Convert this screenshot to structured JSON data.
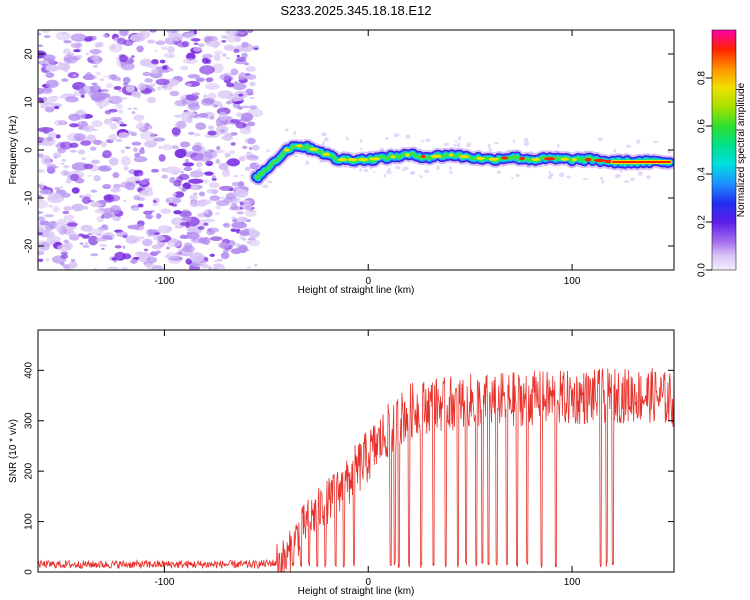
{
  "title": "S233.2025.345.18.18.E12",
  "colors": {
    "trace": "#e8322c",
    "axis": "#000000",
    "noise_light": "#d9c6f5",
    "noise_mid": "#b48ef0",
    "noise_dark": "#7a2be0",
    "ridge_core": "#ff2200"
  },
  "chart_data": [
    {
      "type": "heatmap",
      "panel": "top",
      "xlabel": "Height of straight line (km)",
      "ylabel": "Frequency (Hz)",
      "xlim": [
        -162,
        150
      ],
      "ylim": [
        -25,
        25
      ],
      "xticks": [
        -100,
        0,
        100
      ],
      "xtick_labels": [
        "-100",
        "0",
        "100"
      ],
      "yticks": [
        -20,
        -10,
        0,
        10,
        20
      ],
      "ytick_labels": [
        "-20",
        "-10",
        "0",
        "10",
        "20"
      ],
      "noise_region_x": [
        -162,
        -55
      ],
      "ridge": {
        "x": [
          -55,
          -50,
          -45,
          -40,
          -35,
          -30,
          -25,
          -20,
          -15,
          -10,
          0,
          10,
          20,
          30,
          40,
          50,
          60,
          70,
          80,
          90,
          100,
          110,
          120,
          130,
          140,
          148
        ],
        "y": [
          -6,
          -4,
          -2,
          0,
          1,
          0.5,
          0,
          -1,
          -2,
          -2,
          -2,
          -1.5,
          -1,
          -1.5,
          -1,
          -1.5,
          -2,
          -1.5,
          -2,
          -1.8,
          -2,
          -2,
          -2.5,
          -2.5,
          -2.5,
          -2.5
        ]
      },
      "colorbar": {
        "label": "Normalized spectral amplitude",
        "range": [
          0,
          1
        ],
        "ticks": [
          0.0,
          0.2,
          0.4,
          0.6,
          0.8
        ],
        "tick_labels": [
          "0.0",
          "0.2",
          "0.4",
          "0.6",
          "0.8"
        ]
      }
    },
    {
      "type": "line",
      "panel": "bottom",
      "xlabel": "Height of straight line (km)",
      "ylabel": "SNR (10 * v/v)",
      "xlim": [
        -162,
        150
      ],
      "ylim": [
        0,
        480
      ],
      "xticks": [
        -100,
        0,
        100
      ],
      "xtick_labels": [
        "-100",
        "0",
        "100"
      ],
      "yticks": [
        0,
        100,
        200,
        300,
        400
      ],
      "ytick_labels": [
        "0",
        "100",
        "200",
        "300",
        "400"
      ],
      "series": [
        {
          "name": "SNR",
          "trend": {
            "x": [
              -162,
              -55,
              -45,
              -40,
              -35,
              -30,
              -20,
              -15,
              -10,
              -5,
              0,
              5,
              10,
              15,
              20,
              30,
              40,
              50,
              60,
              80,
              100,
              120,
              140,
              150
            ],
            "y": [
              15,
              15,
              18,
              25,
              70,
              100,
              140,
              160,
              180,
              205,
              230,
              255,
              280,
              300,
              320,
              330,
              335,
              340,
              340,
              345,
              345,
              350,
              350,
              340
            ]
          },
          "dropouts_x": [
            -37,
            -33,
            -29,
            -25,
            -21,
            -16,
            -12,
            -7,
            11,
            13,
            15,
            20,
            26,
            32,
            38,
            44,
            48,
            53,
            56,
            59,
            63,
            68,
            73,
            78,
            85,
            92,
            114,
            117,
            120
          ]
        }
      ]
    }
  ]
}
